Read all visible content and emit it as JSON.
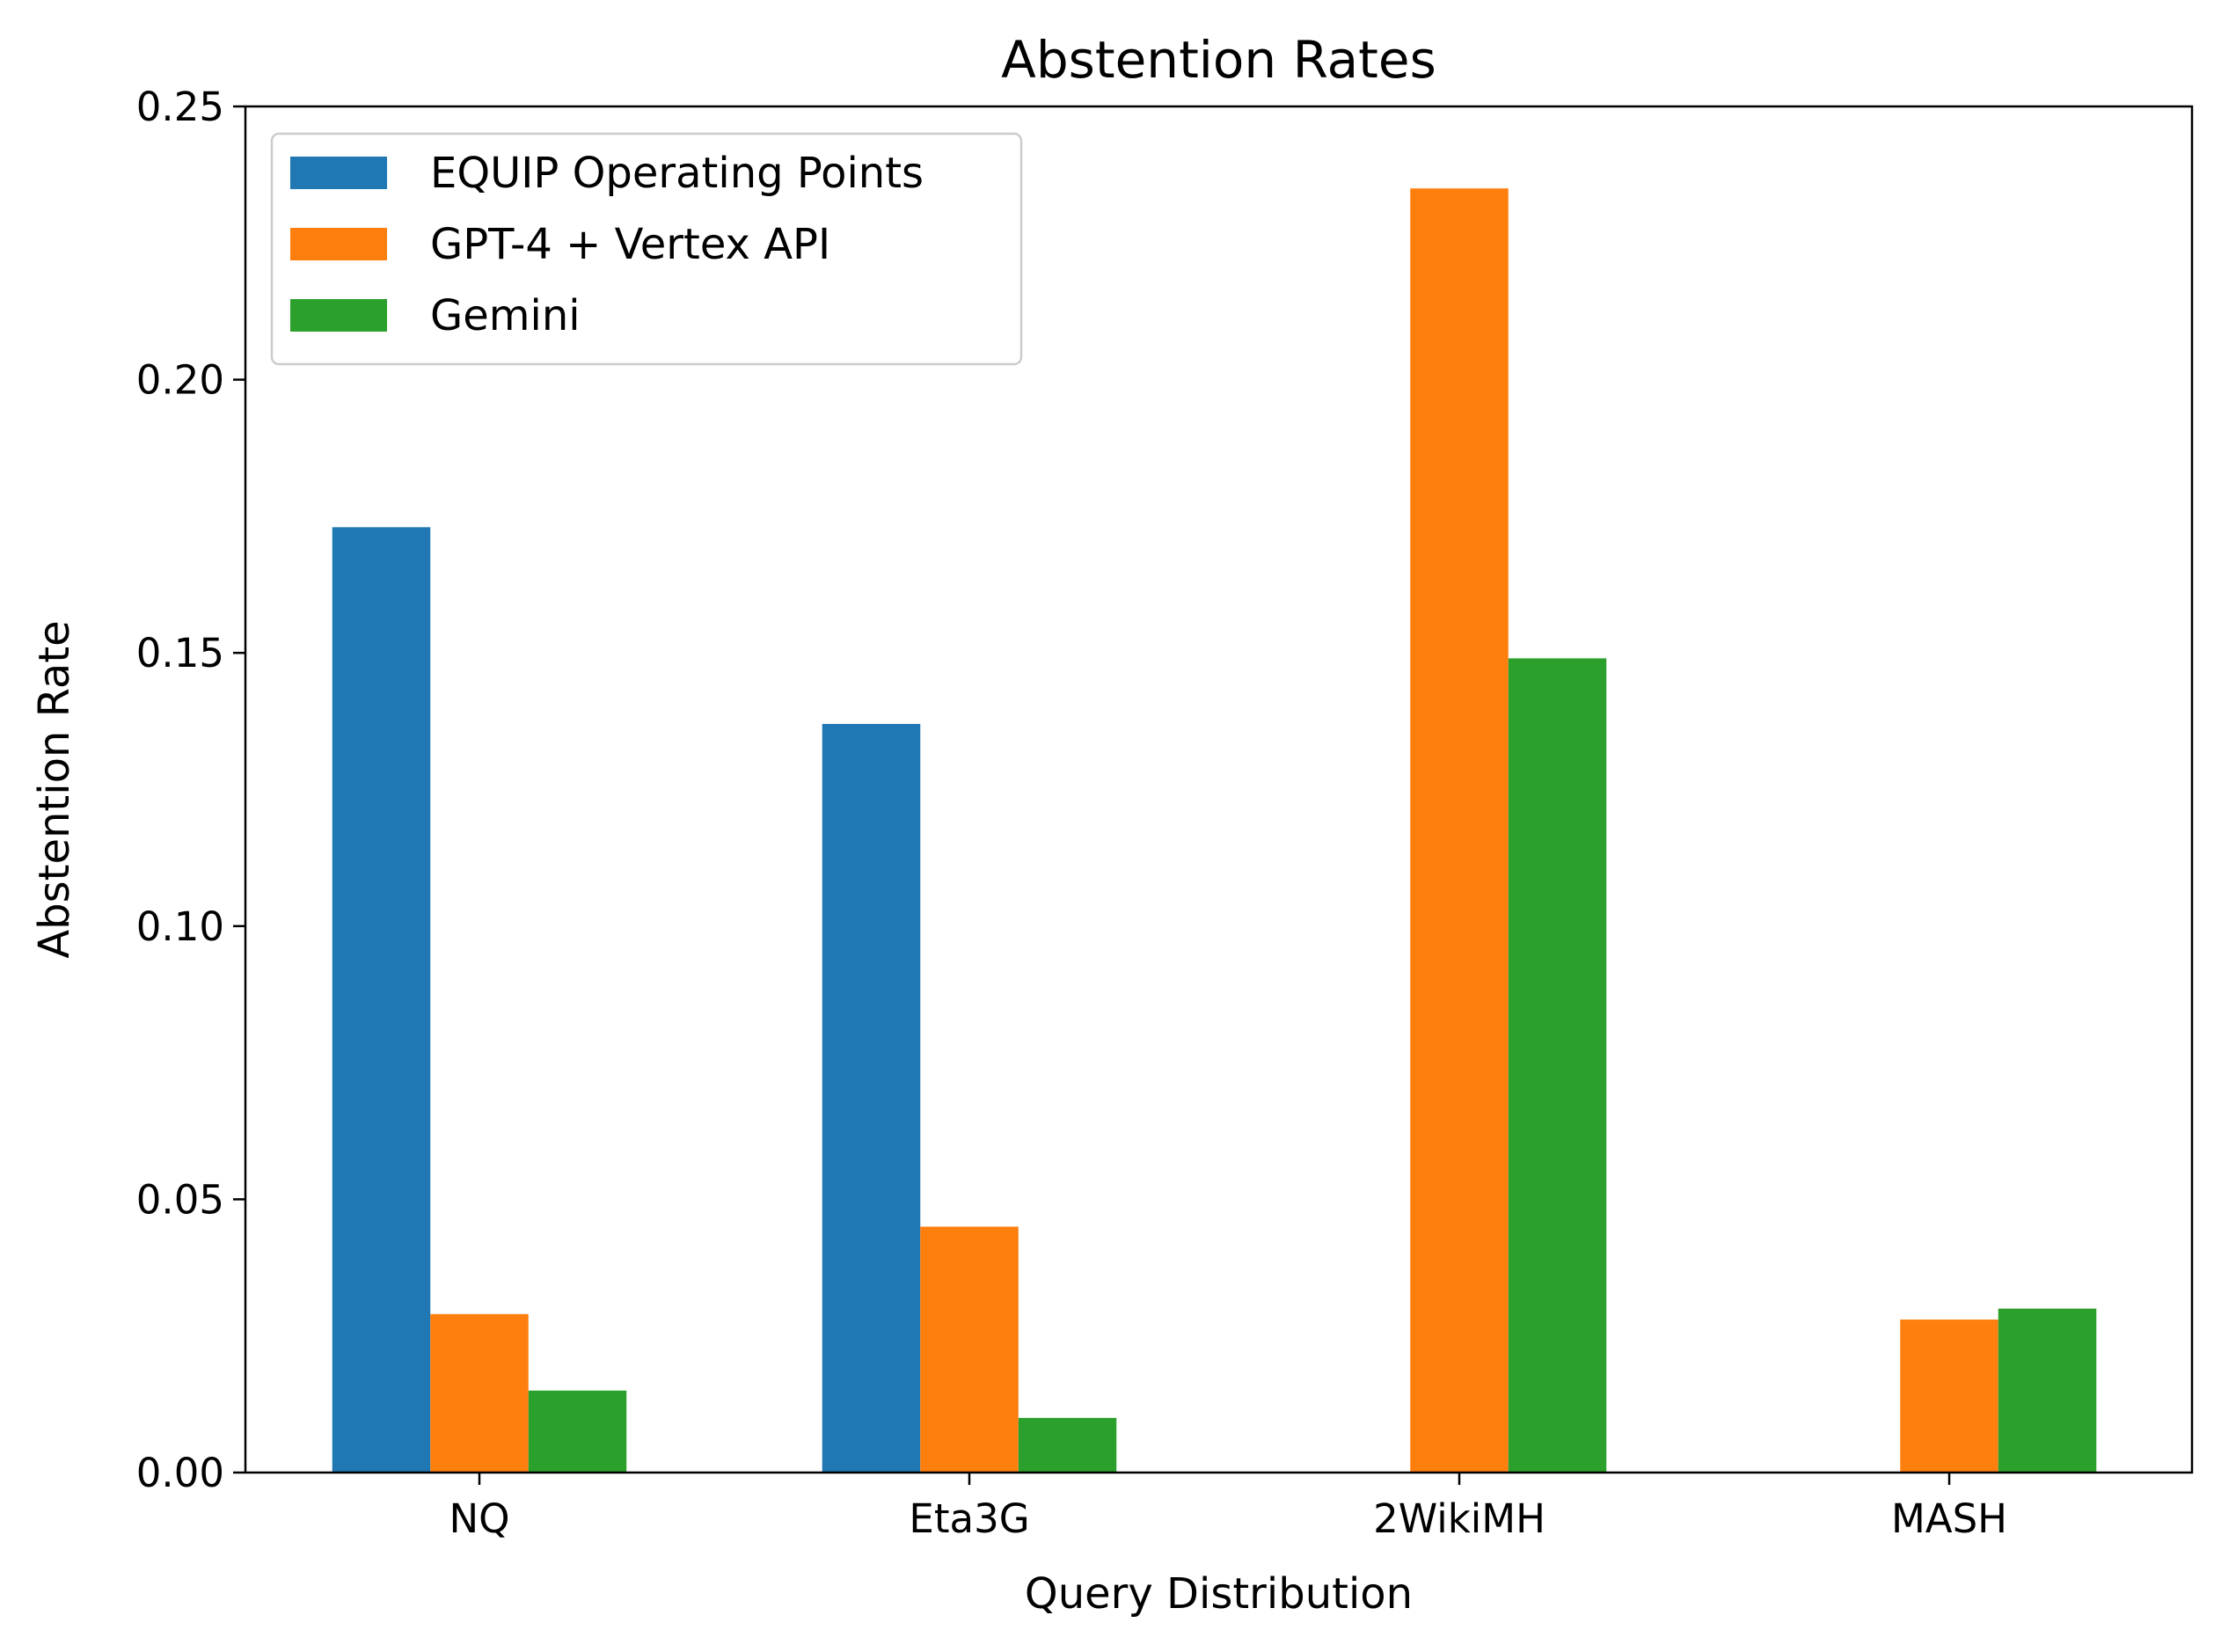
{
  "chart_data": {
    "type": "bar",
    "title": "Abstention Rates",
    "xlabel": "Query Distribution",
    "ylabel": "Abstention Rate",
    "categories": [
      "NQ",
      "Eta3G",
      "2WikiMH",
      "MASH"
    ],
    "ylim": [
      0,
      0.25
    ],
    "yticks": [
      0.0,
      0.05,
      0.1,
      0.15,
      0.2,
      0.25
    ],
    "ytick_labels": [
      "0.00",
      "0.05",
      "0.10",
      "0.15",
      "0.20",
      "0.25"
    ],
    "grid": false,
    "legend_position": "top-left",
    "series": [
      {
        "name": "EQUIP Operating Points",
        "color": "#1f77b4",
        "values": [
          0.173,
          0.137,
          0.0,
          0.0
        ]
      },
      {
        "name": "GPT-4 + Vertex API",
        "color": "#ff7f0e",
        "values": [
          0.029,
          0.045,
          0.235,
          0.028
        ]
      },
      {
        "name": "Gemini",
        "color": "#2ca02c",
        "values": [
          0.015,
          0.01,
          0.149,
          0.03
        ]
      }
    ]
  }
}
